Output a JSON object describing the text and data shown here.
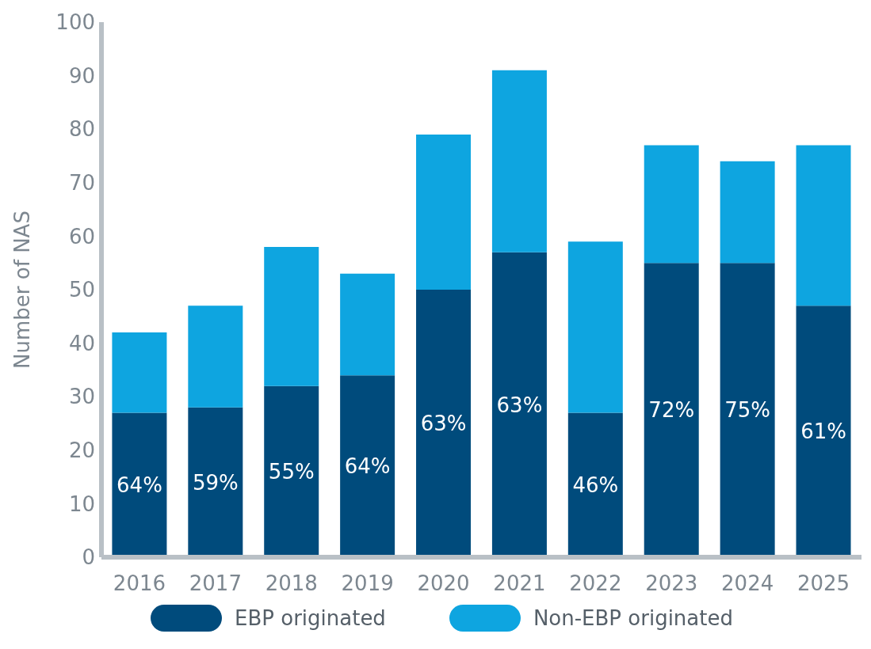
{
  "chart_data": {
    "type": "bar",
    "stacked": true,
    "ylabel": "Number of NAS",
    "categories": [
      "2016",
      "2017",
      "2018",
      "2019",
      "2020",
      "2021",
      "2022",
      "2023",
      "2024",
      "2025"
    ],
    "series": [
      {
        "name": "EBP originated",
        "color": "#004b7c",
        "values": [
          27,
          28,
          32,
          34,
          50,
          57,
          27,
          55,
          55,
          47
        ]
      },
      {
        "name": "Non-EBP originated",
        "color": "#0ea5e0",
        "values": [
          15,
          19,
          26,
          19,
          29,
          34,
          32,
          22,
          19,
          30
        ]
      }
    ],
    "annotations": [
      "64%",
      "59%",
      "55%",
      "64%",
      "63%",
      "63%",
      "46%",
      "72%",
      "75%",
      "61%"
    ],
    "ylim": [
      0,
      100
    ],
    "yticks": [
      0,
      10,
      20,
      30,
      40,
      50,
      60,
      70,
      80,
      90,
      100
    ],
    "grid": false,
    "legend": "bottom"
  }
}
